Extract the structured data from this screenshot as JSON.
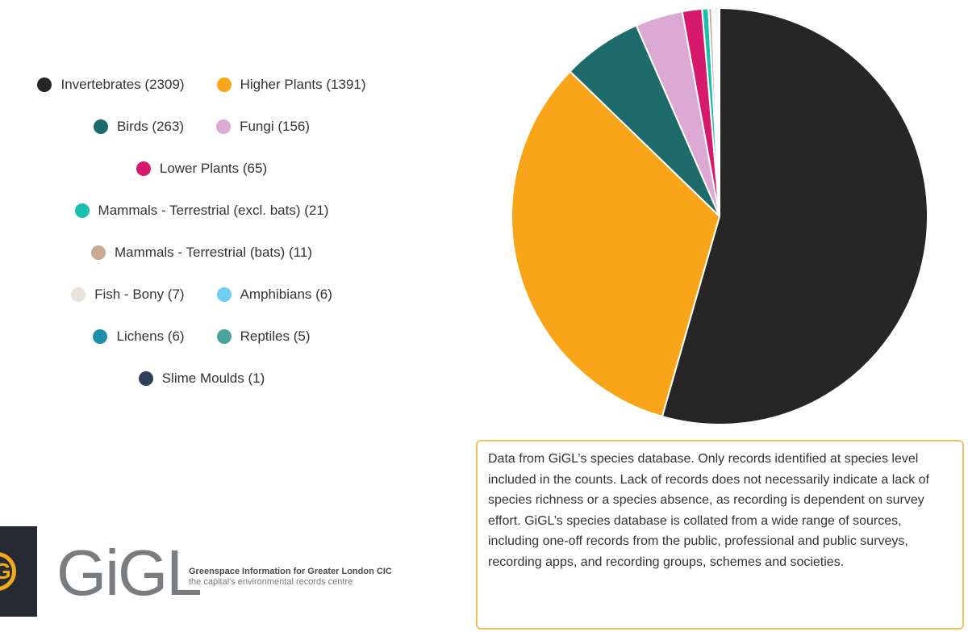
{
  "chart_data": {
    "type": "pie",
    "legend_position": "left",
    "start_angle_deg": 0,
    "direction": "clockwise",
    "slices": [
      {
        "label": "Invertebrates (2309)",
        "value": 2309,
        "color": "#262626"
      },
      {
        "label": "Higher Plants (1391)",
        "value": 1391,
        "color": "#f9a51a"
      },
      {
        "label": "Birds (263)",
        "value": 263,
        "color": "#1e6b6b"
      },
      {
        "label": "Fungi (156)",
        "value": 156,
        "color": "#dba9d3"
      },
      {
        "label": "Lower Plants (65)",
        "value": 65,
        "color": "#d6196a"
      },
      {
        "label": "Mammals - Terrestrial (excl. bats) (21)",
        "value": 21,
        "color": "#1bbfae"
      },
      {
        "label": "Mammals - Terrestrial (bats) (11)",
        "value": 11,
        "color": "#c8aa92"
      },
      {
        "label": "Fish - Bony (7)",
        "value": 7,
        "color": "#e9e2d8"
      },
      {
        "label": "Amphibians (6)",
        "value": 6,
        "color": "#6fcdf2"
      },
      {
        "label": "Lichens (6)",
        "value": 6,
        "color": "#1d8fa8"
      },
      {
        "label": "Reptiles (5)",
        "value": 5,
        "color": "#4aa49e"
      },
      {
        "label": "Slime Moulds (1)",
        "value": 1,
        "color": "#2e3f57"
      }
    ],
    "legend_rows": [
      [
        0,
        1
      ],
      [
        2,
        3
      ],
      [
        4
      ],
      [
        5
      ],
      [
        6
      ],
      [
        7,
        8
      ],
      [
        9,
        10
      ],
      [
        11
      ]
    ]
  },
  "note": "Data from GiGL’s species database. Only records identified at species level included in the counts. Lack of records does not necessarily indicate a lack of species richness or a species absence, as recording is dependent on survey effort. GiGL’s species database is collated from a wide range of sources, including one-off records from the public, professional and public surveys, recording apps, and recording groups, schemes and societies.",
  "logo": {
    "mark": "G",
    "wordmark": "GiGL",
    "tagline_1": "Greenspace Information for Greater London CIC",
    "tagline_2": "the capital's environmental records centre",
    "colors": {
      "dark": "#262a33",
      "accent": "#f2a81d",
      "grey": "#7a7d80"
    }
  }
}
